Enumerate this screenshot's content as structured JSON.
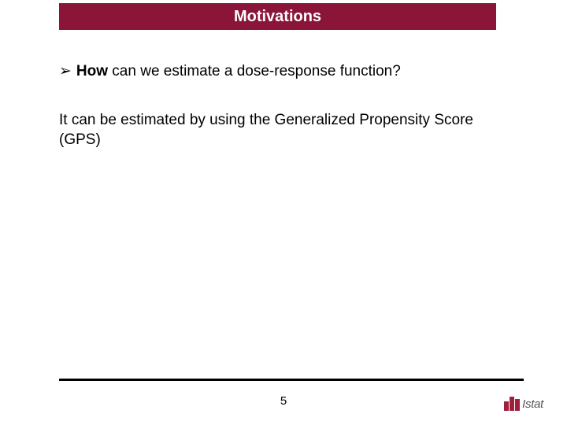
{
  "header": {
    "title": "Motivations",
    "bar_color": "#8a1538",
    "text_color": "#ffffff"
  },
  "content": {
    "bullet_marker": "➢",
    "question_bold": "How",
    "question_rest": " can we estimate a dose-response function?",
    "answer": "It can be estimated by using the Generalized Propensity Score (GPS)"
  },
  "footer": {
    "page_number": "5",
    "logo_text": "Istat",
    "logo_color": "#a01f3c",
    "rule_color": "#000000"
  }
}
